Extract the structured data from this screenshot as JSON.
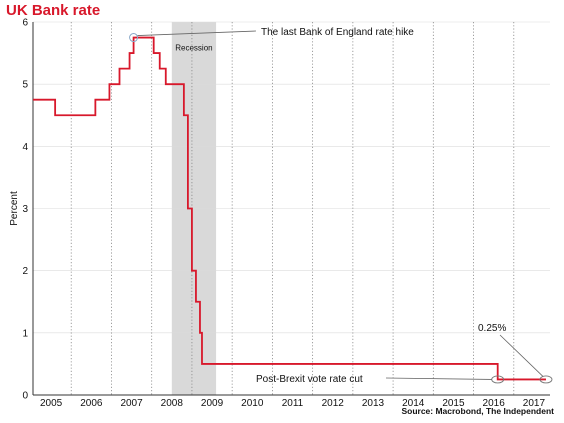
{
  "chart_data": {
    "type": "line",
    "title": "UK Bank rate",
    "ylabel": "Percent",
    "xlabel": "",
    "source": "Source: Macrobond, The Independent",
    "xlim": [
      2004.55,
      2017.4
    ],
    "ylim": [
      0,
      6
    ],
    "yticks": [
      0,
      1,
      2,
      3,
      4,
      5,
      6
    ],
    "xtick_labels": [
      "2005",
      "2006",
      "2007",
      "2008",
      "2009",
      "2010",
      "2011",
      "2012",
      "2013",
      "2014",
      "2015",
      "2016",
      "2017"
    ],
    "xtick_positions": [
      2005,
      2006,
      2007,
      2008,
      2009,
      2010,
      2011,
      2012,
      2013,
      2014,
      2015,
      2016,
      2017
    ],
    "grid_years": [
      2005.5,
      2006.5,
      2007.5,
      2008.5,
      2009.5,
      2010.5,
      2011.5,
      2012.5,
      2013.5,
      2014.5,
      2015.5,
      2016.5,
      2017.5
    ],
    "line_color": "#d8182b",
    "recession": {
      "start": 2008.0,
      "end": 2009.1,
      "label": "Recession",
      "color": "#d9d9d9"
    },
    "series": [
      {
        "step_points": [
          [
            2004.55,
            4.75
          ],
          [
            2005.1,
            4.5
          ],
          [
            2006.1,
            4.75
          ],
          [
            2006.45,
            5.0
          ],
          [
            2006.7,
            5.25
          ],
          [
            2006.95,
            5.5
          ],
          [
            2007.05,
            5.75
          ],
          [
            2007.55,
            5.5
          ],
          [
            2007.7,
            5.25
          ],
          [
            2007.85,
            5.0
          ],
          [
            2008.3,
            4.5
          ],
          [
            2008.4,
            3.0
          ],
          [
            2008.5,
            2.0
          ],
          [
            2008.6,
            1.5
          ],
          [
            2008.7,
            1.0
          ],
          [
            2008.75,
            0.5
          ],
          [
            2016.1,
            0.25
          ],
          [
            2017.3,
            0.25
          ]
        ]
      }
    ],
    "annotations": [
      {
        "text": "The last Bank of England rate hike",
        "point": [
          2007.05,
          5.75
        ]
      },
      {
        "text": "Post-Brexit vote rate cut",
        "point": [
          2016.1,
          0.25
        ]
      },
      {
        "text": "0.25%",
        "point": [
          2017.3,
          0.25
        ]
      }
    ]
  }
}
